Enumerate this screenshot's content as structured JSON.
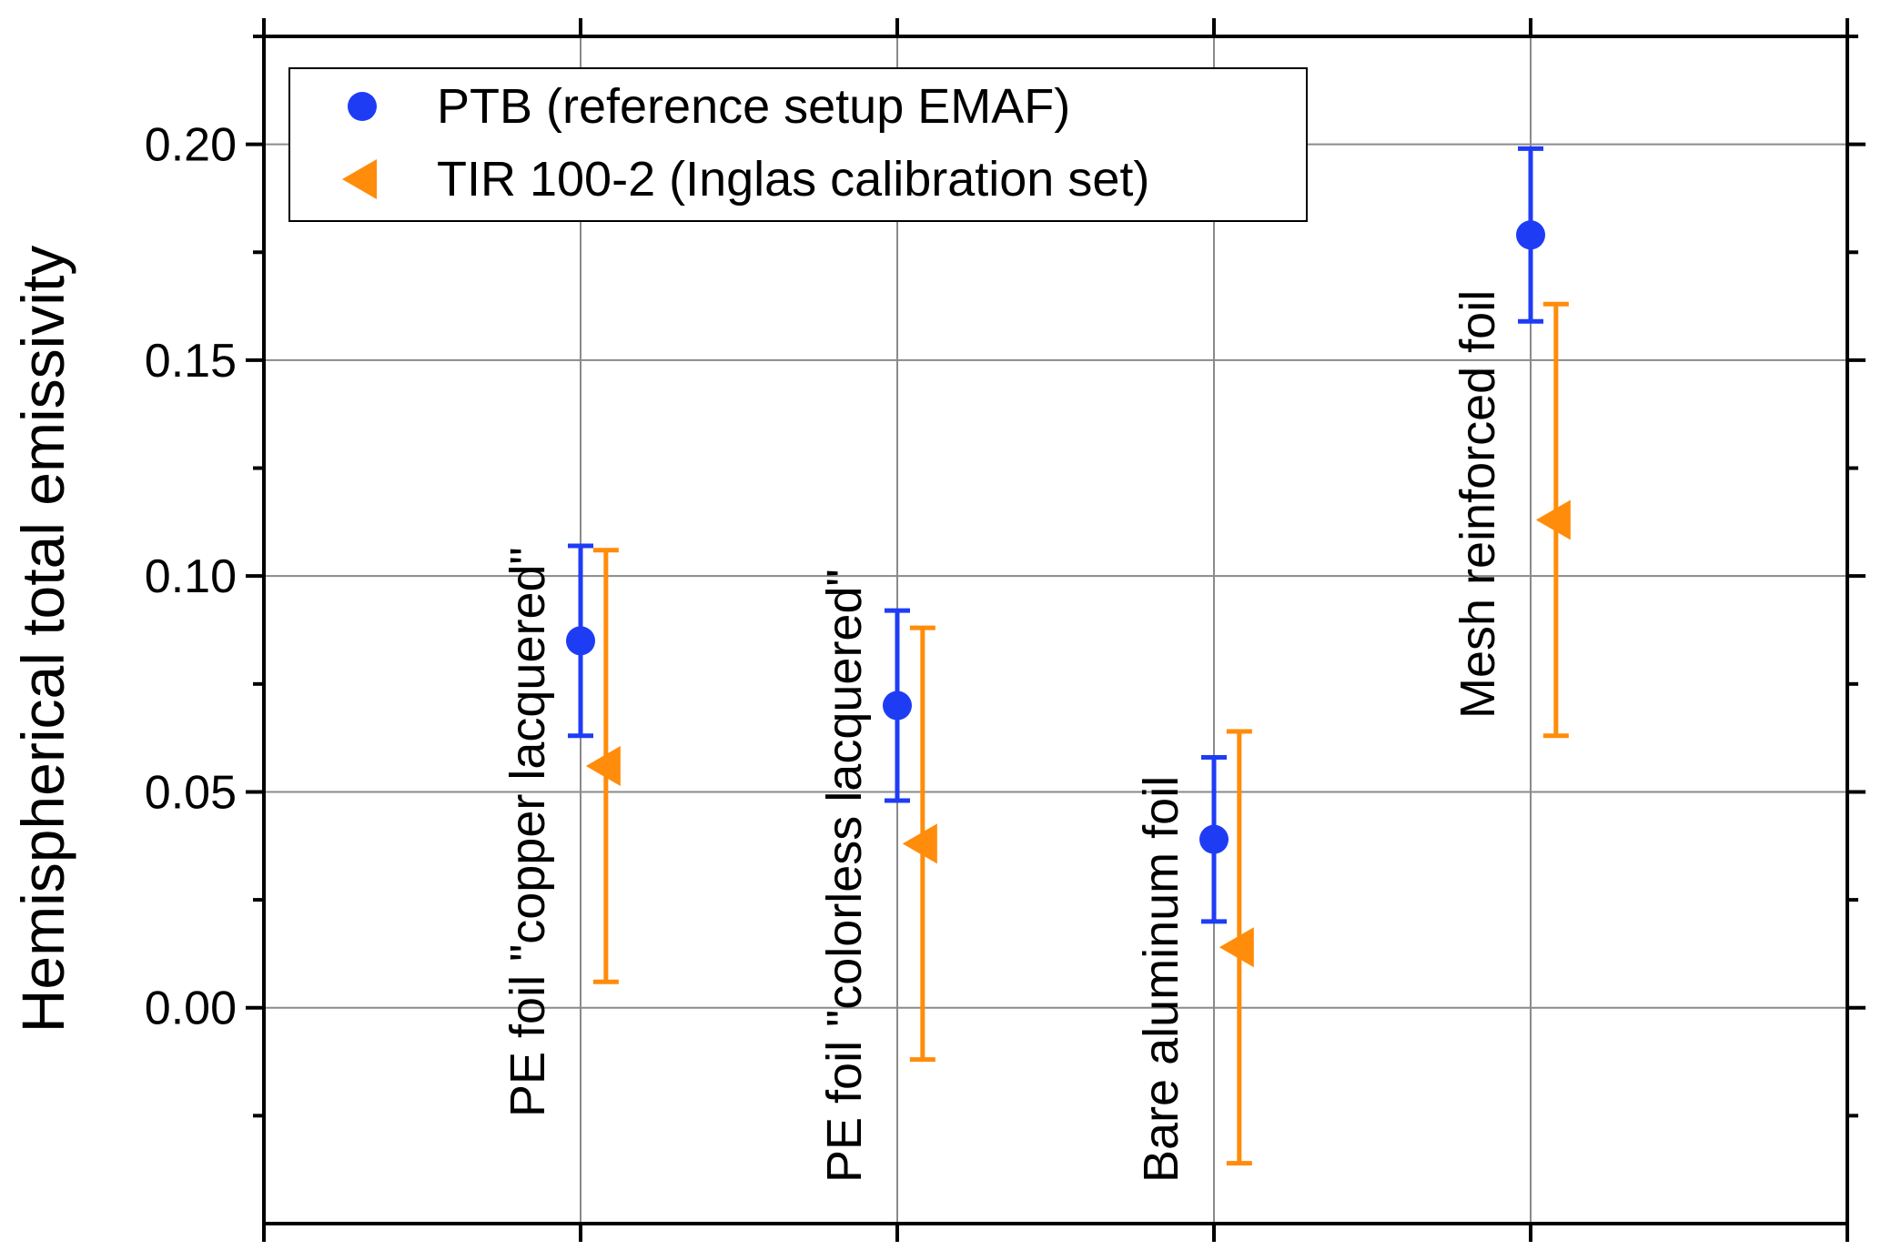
{
  "chart_data": {
    "type": "scatter",
    "title": "",
    "xlabel": "",
    "ylabel": "Hemispherical total emissivity",
    "xlim": [
      0,
      5
    ],
    "ylim": [
      -0.05,
      0.225
    ],
    "yticks": [
      0.0,
      0.05,
      0.1,
      0.15,
      0.2
    ],
    "ytick_labels": [
      "0.00",
      "0.05",
      "0.10",
      "0.15",
      "0.20"
    ],
    "grid": true,
    "legend_position": "top-left",
    "categories": [
      "PE foil \"copper lacquered\"",
      "PE foil \"colorless lacquered\"",
      "Bare aluminum foil",
      "Mesh reinforced foil"
    ],
    "series": [
      {
        "name": "PTB (reference setup EMAF)",
        "marker": "circle",
        "color": "#1f3cf5",
        "x": [
          1,
          2,
          3,
          4
        ],
        "values": [
          0.085,
          0.07,
          0.039,
          0.179
        ],
        "err_low": [
          0.063,
          0.048,
          0.02,
          0.159
        ],
        "err_high": [
          0.107,
          0.092,
          0.058,
          0.199
        ]
      },
      {
        "name": "TIR 100-2 (Inglas calibration set)",
        "marker": "triangle-left",
        "color": "#ff8c0a",
        "x": [
          1.08,
          2.08,
          3.08,
          4.08
        ],
        "values": [
          0.056,
          0.038,
          0.014,
          0.113
        ],
        "err_low": [
          0.006,
          -0.012,
          -0.036,
          0.063
        ],
        "err_high": [
          0.106,
          0.088,
          0.064,
          0.163
        ]
      }
    ]
  }
}
